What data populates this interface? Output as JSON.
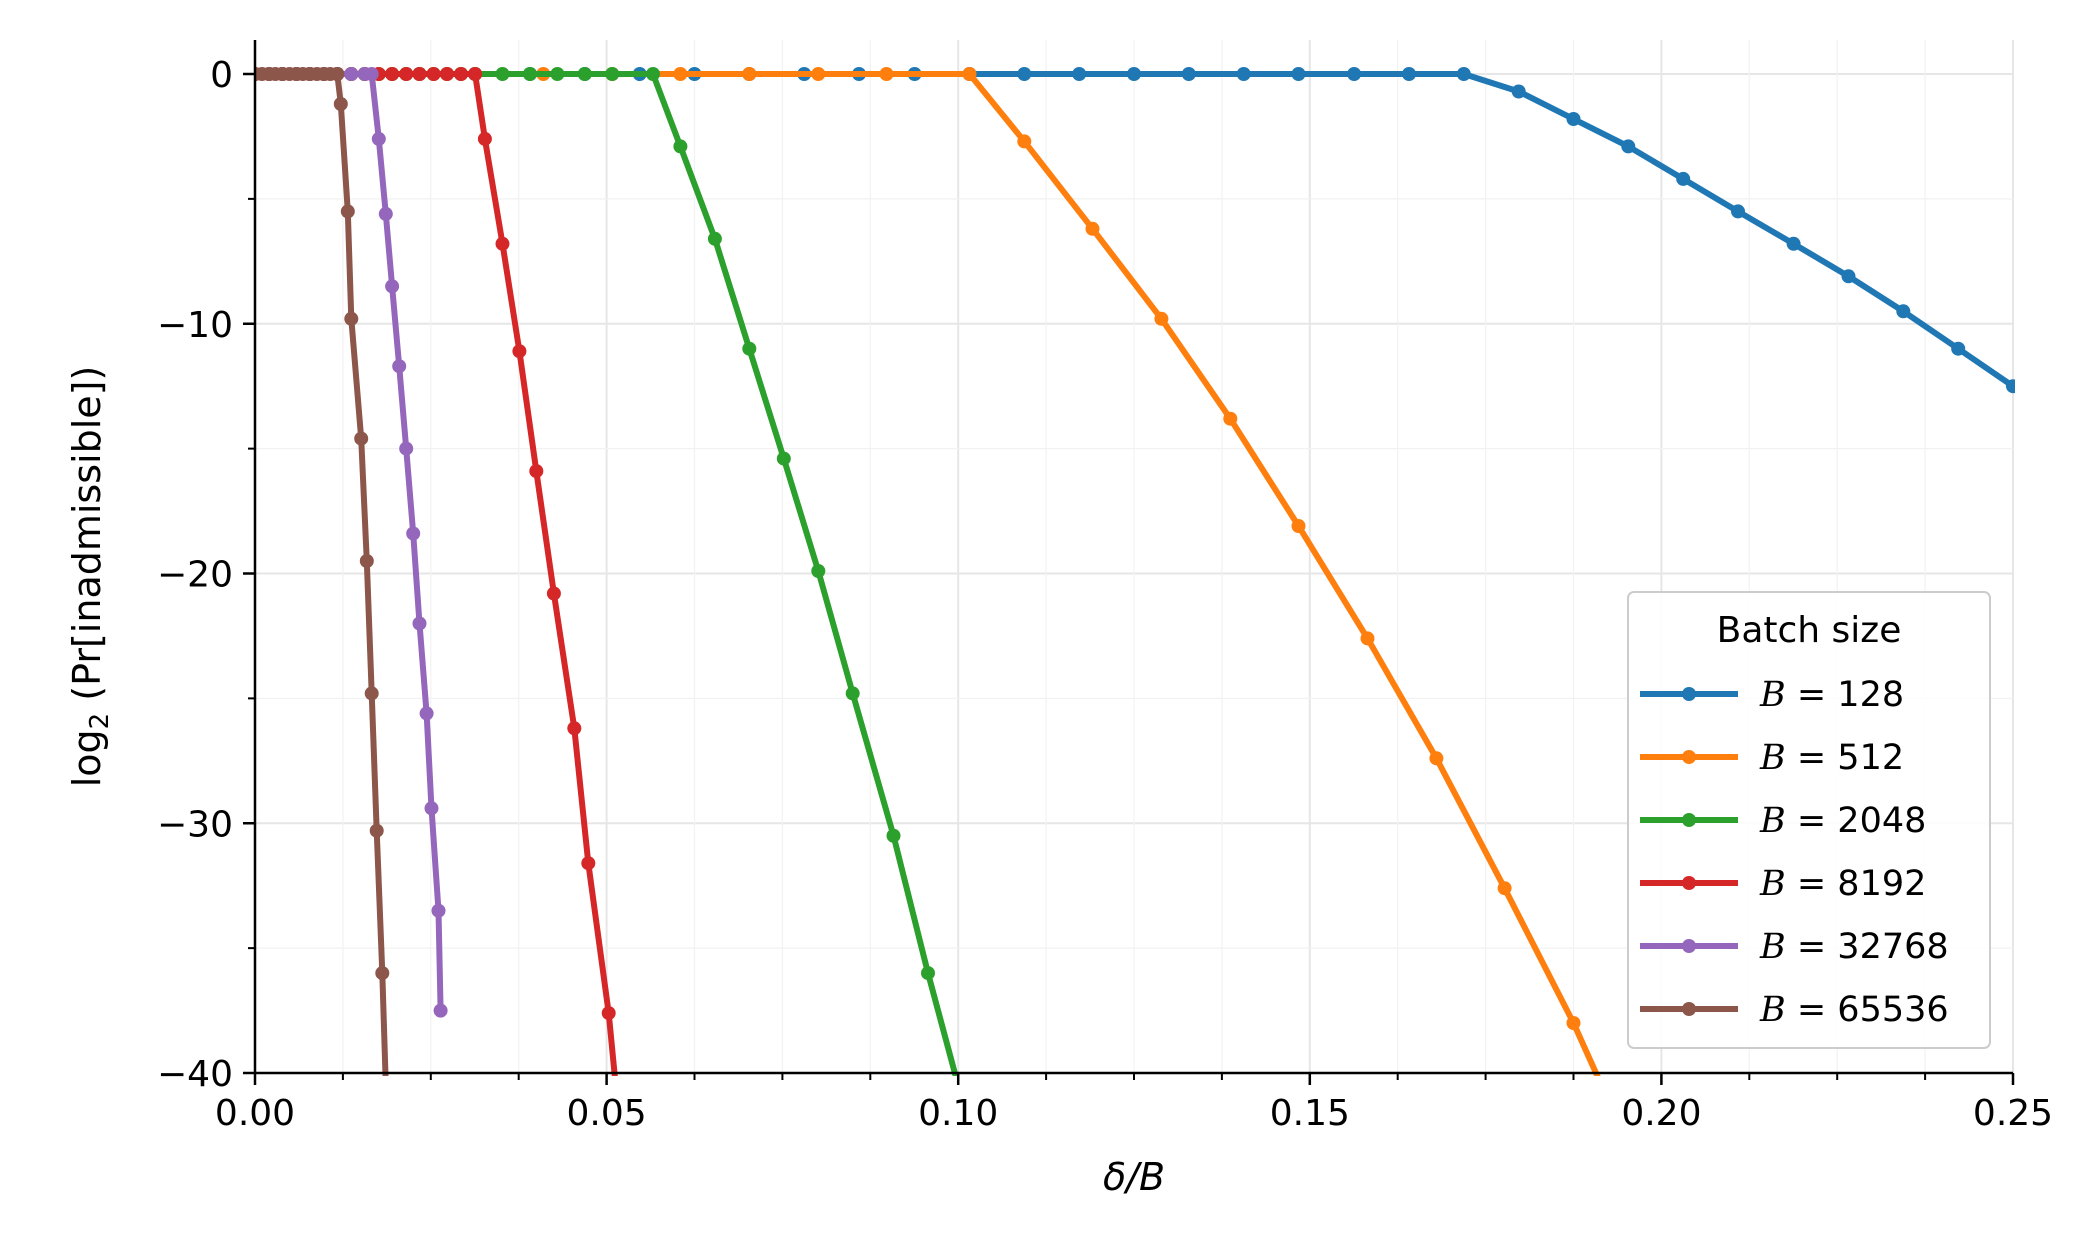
{
  "chart_data": {
    "type": "line",
    "xlabel": "δ/B",
    "ylabel_main": "log",
    "ylabel_sub": "2",
    "ylabel_rest": " (Pr[inadmissible])",
    "xlim": [
      0.0,
      0.25
    ],
    "ylim": [
      -40,
      1
    ],
    "x_ticks": [
      0.0,
      0.05,
      0.1,
      0.15,
      0.2,
      0.25
    ],
    "x_tick_labels": [
      "0.00",
      "0.05",
      "0.10",
      "0.15",
      "0.20",
      "0.25"
    ],
    "y_ticks": [
      0,
      -10,
      -20,
      -30,
      -40
    ],
    "y_tick_labels": [
      "0",
      "−10",
      "−20",
      "−30",
      "−40"
    ],
    "x_minor_ticks": [
      0.0125,
      0.025,
      0.0375,
      0.0625,
      0.075,
      0.0875,
      0.1125,
      0.125,
      0.1375,
      0.1625,
      0.175,
      0.1875,
      0.2125,
      0.225,
      0.2375
    ],
    "y_minor_ticks": [
      -5,
      -15,
      -25,
      -35
    ],
    "grid": true,
    "legend": {
      "title": "Batch size",
      "position": "lower-right",
      "labels": [
        "B = 128",
        "B = 512",
        "B = 2048",
        "B = 8192",
        "B = 32768",
        "B = 65536"
      ]
    },
    "series": [
      {
        "name": "B = 128",
        "color": "#1f77b4",
        "x": [
          0.0,
          0.0078,
          0.0156,
          0.0234,
          0.0313,
          0.0391,
          0.0469,
          0.0547,
          0.0625,
          0.0703,
          0.0781,
          0.0859,
          0.0938,
          0.1016,
          0.1094,
          0.1172,
          0.125,
          0.1328,
          0.1406,
          0.1484,
          0.1563,
          0.1641,
          0.1719,
          0.1797,
          0.1875,
          0.1953,
          0.2031,
          0.2109,
          0.2188,
          0.2266,
          0.2344,
          0.2422,
          0.25
        ],
        "y": [
          0,
          0,
          0,
          0,
          0,
          0,
          0,
          0,
          0,
          0,
          0,
          0,
          0,
          0,
          0,
          0,
          0,
          0,
          0,
          0,
          0,
          0,
          0,
          -0.7,
          -1.8,
          -2.9,
          -4.2,
          -5.5,
          -6.8,
          -8.1,
          -9.5,
          -11.0,
          -12.5
        ]
      },
      {
        "name": "B = 512",
        "color": "#ff7f0e",
        "x": [
          0.0,
          0.002,
          0.0039,
          0.0059,
          0.0078,
          0.0098,
          0.0117,
          0.0137,
          0.0156,
          0.0176,
          0.0195,
          0.0215,
          0.0234,
          0.0254,
          0.0273,
          0.0293,
          0.0313,
          0.041,
          0.0508,
          0.0605,
          0.0703,
          0.0801,
          0.0898,
          0.1016,
          0.1094,
          0.1191,
          0.1289,
          0.1387,
          0.1484,
          0.1582,
          0.168,
          0.1777,
          0.1875,
          0.1915
        ],
        "y": [
          0,
          0,
          0,
          0,
          0,
          0,
          0,
          0,
          0,
          0,
          0,
          0,
          0,
          0,
          0,
          0,
          0,
          0,
          0,
          0,
          0,
          0,
          0,
          0,
          -2.7,
          -6.2,
          -9.8,
          -13.8,
          -18.1,
          -22.6,
          -27.4,
          -32.6,
          -38.0,
          -40.5
        ]
      },
      {
        "name": "B = 2048",
        "color": "#2ca02c",
        "x": [
          0.0,
          0.002,
          0.0039,
          0.0059,
          0.0078,
          0.0098,
          0.0117,
          0.0137,
          0.0156,
          0.0176,
          0.0195,
          0.0215,
          0.0234,
          0.0254,
          0.0273,
          0.0293,
          0.0313,
          0.0352,
          0.0391,
          0.043,
          0.0469,
          0.0508,
          0.0566,
          0.0605,
          0.0654,
          0.0703,
          0.0752,
          0.0801,
          0.085,
          0.0908,
          0.0957,
          0.1
        ],
        "y": [
          0,
          0,
          0,
          0,
          0,
          0,
          0,
          0,
          0,
          0,
          0,
          0,
          0,
          0,
          0,
          0,
          0,
          0,
          0,
          0,
          0,
          0,
          0,
          -2.9,
          -6.6,
          -11.0,
          -15.4,
          -19.9,
          -24.8,
          -30.5,
          -36.0,
          -40.5
        ]
      },
      {
        "name": "B = 8192",
        "color": "#d62728",
        "x": [
          0.0,
          0.002,
          0.0039,
          0.0059,
          0.0078,
          0.0098,
          0.0117,
          0.0137,
          0.0156,
          0.0176,
          0.0195,
          0.0215,
          0.0234,
          0.0254,
          0.0273,
          0.0293,
          0.0313,
          0.0327,
          0.0352,
          0.0376,
          0.04,
          0.0425,
          0.0454,
          0.0474,
          0.0503,
          0.0513
        ],
        "y": [
          0,
          0,
          0,
          0,
          0,
          0,
          0,
          0,
          0,
          0,
          0,
          0,
          0,
          0,
          0,
          0,
          0,
          -2.6,
          -6.8,
          -11.1,
          -15.9,
          -20.8,
          -26.2,
          -31.6,
          -37.6,
          -40.5
        ]
      },
      {
        "name": "B = 32768",
        "color": "#9467bd",
        "x": [
          0.0,
          0.002,
          0.0039,
          0.0059,
          0.0078,
          0.0098,
          0.0117,
          0.0137,
          0.0156,
          0.0166,
          0.0176,
          0.0186,
          0.0195,
          0.0205,
          0.0215,
          0.0225,
          0.0234,
          0.0244,
          0.0251,
          0.0261,
          0.0264
        ],
        "y": [
          0,
          0,
          0,
          0,
          0,
          0,
          0,
          0,
          0,
          0,
          -2.6,
          -5.6,
          -8.5,
          -11.7,
          -15.0,
          -18.4,
          -22.0,
          -25.6,
          -29.4,
          -33.5,
          -37.5
        ]
      },
      {
        "name": "B = 65536",
        "color": "#8c564b",
        "x": [
          0.0,
          0.001,
          0.002,
          0.0029,
          0.0039,
          0.0049,
          0.0059,
          0.0068,
          0.0078,
          0.0088,
          0.0098,
          0.0107,
          0.0117,
          0.0122,
          0.0132,
          0.0137,
          0.0151,
          0.0159,
          0.0166,
          0.0173,
          0.0181,
          0.0186,
          0.019
        ],
        "y": [
          0,
          0,
          0,
          0,
          0,
          0,
          0,
          0,
          0,
          0,
          0,
          0,
          0,
          -1.2,
          -5.5,
          -9.8,
          -14.6,
          -19.5,
          -24.8,
          -30.3,
          -36.0,
          -40.5,
          -40.5
        ]
      }
    ]
  }
}
